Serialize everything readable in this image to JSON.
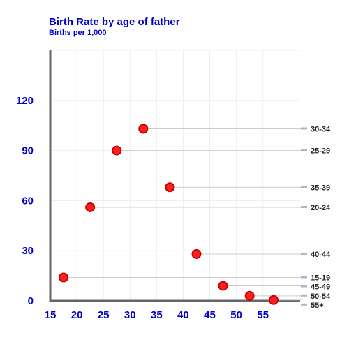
{
  "chart_data": {
    "type": "scatter",
    "title": "Birth Rate by age of father",
    "subtitle": "Births per 1,000",
    "xlabel": "",
    "ylabel": "",
    "xlim": [
      15,
      62
    ],
    "ylim": [
      0,
      150
    ],
    "x_ticks": [
      "15",
      "20",
      "25",
      "30",
      "35",
      "40",
      "45",
      "50",
      "55"
    ],
    "y_ticks": [
      "0",
      "30",
      "60",
      "90",
      "120"
    ],
    "grid": true,
    "marker_color": "#ff2020",
    "marker_edge_color": "#cc0000",
    "points": [
      {
        "label": "15-19",
        "x": 17.5,
        "y": 14
      },
      {
        "label": "20-24",
        "x": 22.5,
        "y": 56
      },
      {
        "label": "25-29",
        "x": 27.5,
        "y": 90
      },
      {
        "label": "30-34",
        "x": 32.5,
        "y": 103
      },
      {
        "label": "35-39",
        "x": 37.5,
        "y": 68
      },
      {
        "label": "40-44",
        "x": 42.5,
        "y": 28
      },
      {
        "label": "45-49",
        "x": 47.5,
        "y": 9
      },
      {
        "label": "50-54",
        "x": 52.5,
        "y": 3
      },
      {
        "label": "55+",
        "x": 57,
        "y": 0.5
      }
    ]
  }
}
